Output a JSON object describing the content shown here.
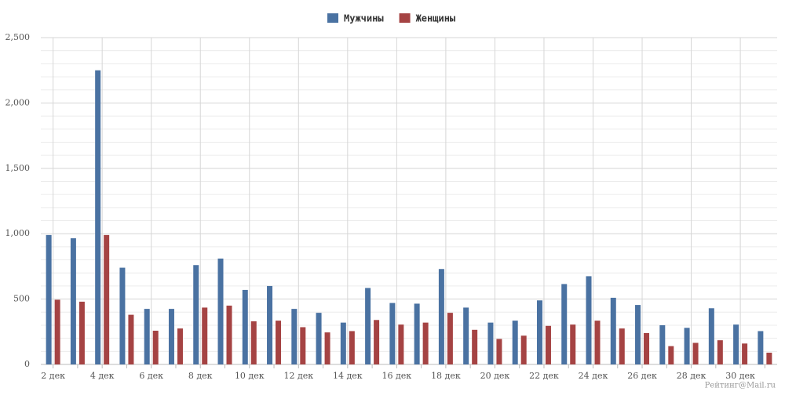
{
  "chart_data": {
    "type": "bar",
    "categories": [
      "2 дек",
      null,
      "4 дек",
      null,
      "6 дек",
      null,
      "8 дек",
      null,
      "10 дек",
      null,
      "12 дек",
      null,
      "14 дек",
      null,
      "16 дек",
      null,
      "18 дек",
      null,
      "20 дек",
      null,
      "22 дек",
      null,
      "24 дек",
      null,
      "26 дек",
      null,
      "28 дек",
      null,
      "30 дек",
      null
    ],
    "series": [
      {
        "name": "Мужчины",
        "color": "#4a72a2",
        "values": [
          990,
          965,
          2250,
          740,
          425,
          425,
          760,
          810,
          570,
          600,
          425,
          395,
          320,
          585,
          470,
          465,
          730,
          435,
          320,
          335,
          490,
          615,
          675,
          510,
          455,
          300,
          280,
          430,
          305,
          255
        ]
      },
      {
        "name": "Женщины",
        "color": "#a54343",
        "values": [
          495,
          480,
          990,
          380,
          258,
          275,
          435,
          450,
          330,
          335,
          285,
          245,
          255,
          340,
          305,
          320,
          395,
          265,
          195,
          220,
          295,
          305,
          335,
          275,
          240,
          140,
          165,
          185,
          160,
          90
        ]
      }
    ],
    "ylim": [
      0,
      2500
    ],
    "yticks": [
      0,
      500,
      {
        "value": 1000,
        "label": "1,000"
      },
      {
        "value": 1500,
        "label": "1,500"
      },
      {
        "value": 2000,
        "label": "2,000"
      },
      {
        "value": 2500,
        "label": "2,500"
      }
    ],
    "grid": true,
    "legend": "top",
    "credit": "Рейтинг@Mail.ru"
  }
}
